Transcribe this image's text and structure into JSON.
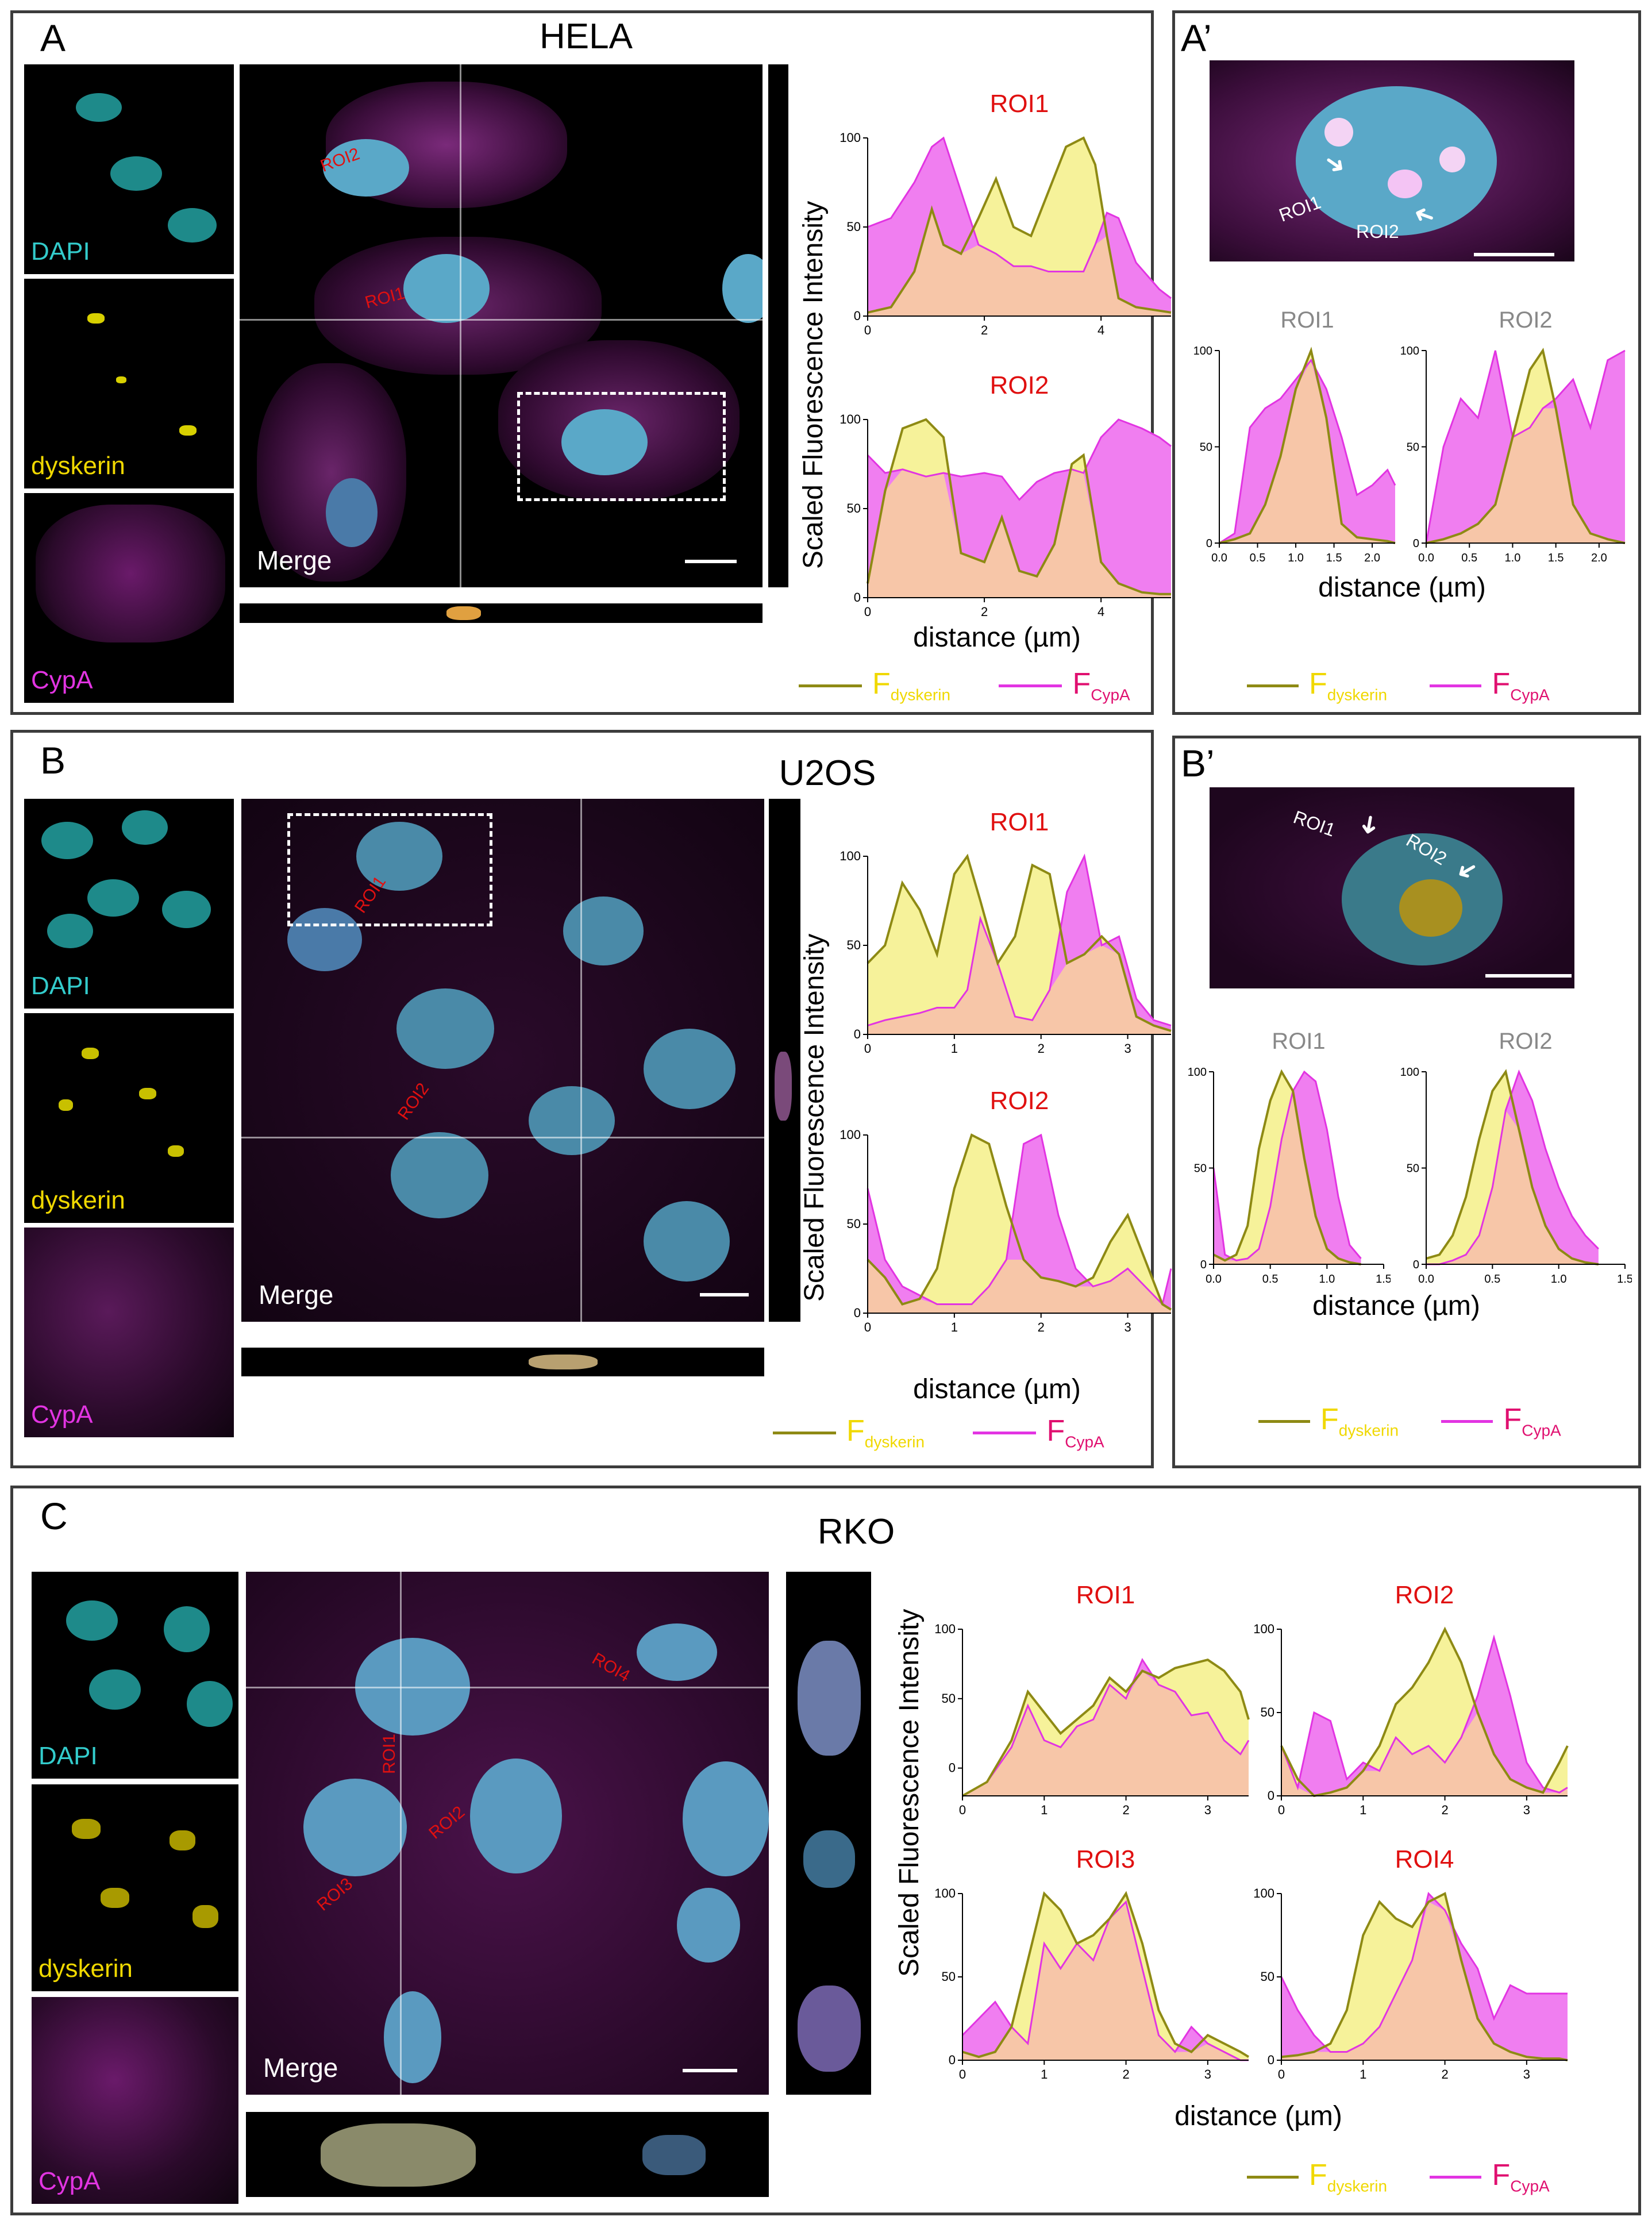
{
  "colors": {
    "dyskerin_line": "#8e8a14",
    "dyskerin_fill": "#f6f29a",
    "dyskerin_text": "#f0d800",
    "cypa": "#e234e2",
    "cypa_fill": "#f07ef0",
    "overlap": "#f7c6a8",
    "roi_red": "#e01010",
    "dapi": "#33cccc",
    "nucleus": "#5aa8c8"
  },
  "panelA": {
    "letter": "A",
    "cell_line": "HELA",
    "channels": [
      "DAPI",
      "dyskerin",
      "CypA"
    ],
    "merge_label": "Merge",
    "roi_labels": [
      "ROI1",
      "ROI2"
    ]
  },
  "panelAp": {
    "letter": "A’",
    "roi_labels": [
      "ROI1",
      "ROI2"
    ]
  },
  "panelB": {
    "letter": "B",
    "cell_line": "U2OS",
    "channels": [
      "DAPI",
      "dyskerin",
      "CypA"
    ],
    "merge_label": "Merge",
    "roi_labels": [
      "ROI1",
      "ROI2"
    ]
  },
  "panelBp": {
    "letter": "B’",
    "roi_labels": [
      "ROI1",
      "ROI2"
    ]
  },
  "panelC": {
    "letter": "C",
    "cell_line": "RKO",
    "channels": [
      "DAPI",
      "dyskerin",
      "CypA"
    ],
    "merge_label": "Merge",
    "roi_labels": [
      "ROI1",
      "ROI2",
      "ROI3",
      "ROI4"
    ]
  },
  "axis": {
    "ylabel": "Scaled Fluorescence Intensity",
    "xlabel": "distance (µm)"
  },
  "legend": {
    "dys_main": "F",
    "dys_sub": "dyskerin",
    "cypa_main": "F",
    "cypa_sub": "CypA"
  },
  "chart_data": [
    {
      "id": "A_ROI1",
      "type": "area",
      "title": "ROI1",
      "xlim": [
        0,
        5.2
      ],
      "ylim": [
        0,
        100
      ],
      "xticks": [
        0,
        2,
        4
      ],
      "yticks": [
        0,
        50,
        100
      ],
      "x": [
        0,
        0.4,
        0.8,
        1.1,
        1.3,
        1.6,
        1.9,
        2.2,
        2.5,
        2.8,
        3.1,
        3.4,
        3.7,
        3.9,
        4.1,
        4.3,
        4.6,
        5.0,
        5.2
      ],
      "series": [
        {
          "name": "dyskerin",
          "values": [
            2,
            5,
            25,
            60,
            40,
            35,
            55,
            77,
            50,
            45,
            70,
            95,
            100,
            85,
            45,
            10,
            5,
            3,
            2
          ]
        },
        {
          "name": "CypA",
          "values": [
            50,
            55,
            75,
            95,
            100,
            70,
            40,
            35,
            28,
            28,
            25,
            25,
            25,
            40,
            58,
            55,
            30,
            15,
            10
          ]
        }
      ]
    },
    {
      "id": "A_ROI2",
      "type": "area",
      "title": "ROI2",
      "xlim": [
        0,
        5.2
      ],
      "ylim": [
        0,
        100
      ],
      "xticks": [
        0,
        2,
        4
      ],
      "yticks": [
        0,
        50,
        100
      ],
      "x": [
        0,
        0.3,
        0.6,
        1.0,
        1.3,
        1.6,
        2.0,
        2.3,
        2.6,
        2.9,
        3.2,
        3.5,
        3.7,
        4.0,
        4.3,
        4.7,
        5.0,
        5.2
      ],
      "series": [
        {
          "name": "dyskerin",
          "values": [
            8,
            60,
            95,
            100,
            90,
            25,
            20,
            45,
            15,
            12,
            30,
            75,
            80,
            20,
            8,
            3,
            2,
            2
          ]
        },
        {
          "name": "CypA",
          "values": [
            80,
            70,
            72,
            68,
            70,
            68,
            70,
            68,
            55,
            65,
            70,
            72,
            70,
            90,
            100,
            95,
            90,
            85
          ]
        }
      ]
    },
    {
      "id": "Ap_ROI1",
      "type": "area",
      "title": "ROI1",
      "xlim": [
        0,
        2.3
      ],
      "ylim": [
        0,
        100
      ],
      "xticks": [
        0.0,
        0.5,
        1.0,
        1.5,
        2.0
      ],
      "yticks": [
        0,
        50,
        100
      ],
      "x": [
        0,
        0.2,
        0.4,
        0.6,
        0.8,
        1.0,
        1.2,
        1.4,
        1.6,
        1.8,
        2.0,
        2.2,
        2.3
      ],
      "series": [
        {
          "name": "dyskerin",
          "values": [
            0,
            2,
            5,
            20,
            45,
            80,
            100,
            65,
            10,
            3,
            2,
            1,
            0
          ]
        },
        {
          "name": "CypA",
          "values": [
            0,
            5,
            60,
            70,
            75,
            85,
            95,
            80,
            55,
            25,
            30,
            38,
            30
          ]
        }
      ]
    },
    {
      "id": "Ap_ROI2",
      "type": "area",
      "title": "ROI2",
      "xlim": [
        0,
        2.3
      ],
      "ylim": [
        0,
        100
      ],
      "xticks": [
        0.0,
        0.5,
        1.0,
        1.5,
        2.0
      ],
      "yticks": [
        0,
        50,
        100
      ],
      "x": [
        0,
        0.2,
        0.4,
        0.6,
        0.8,
        1.0,
        1.2,
        1.35,
        1.5,
        1.7,
        1.9,
        2.1,
        2.3
      ],
      "series": [
        {
          "name": "dyskerin",
          "values": [
            0,
            2,
            5,
            10,
            20,
            55,
            90,
            100,
            70,
            20,
            5,
            2,
            0
          ]
        },
        {
          "name": "CypA",
          "values": [
            0,
            50,
            75,
            65,
            100,
            55,
            60,
            70,
            75,
            85,
            60,
            95,
            100
          ]
        }
      ]
    },
    {
      "id": "B_ROI1",
      "type": "area",
      "title": "ROI1",
      "xlim": [
        0,
        3.5
      ],
      "ylim": [
        0,
        100
      ],
      "xticks": [
        0,
        1,
        2,
        3
      ],
      "yticks": [
        0,
        50,
        100
      ],
      "x": [
        0,
        0.2,
        0.4,
        0.6,
        0.8,
        1.0,
        1.15,
        1.3,
        1.5,
        1.7,
        1.9,
        2.1,
        2.3,
        2.5,
        2.7,
        2.9,
        3.1,
        3.3,
        3.5
      ],
      "series": [
        {
          "name": "dyskerin",
          "values": [
            40,
            50,
            85,
            70,
            45,
            90,
            100,
            75,
            40,
            55,
            95,
            90,
            40,
            45,
            55,
            45,
            10,
            5,
            2
          ]
        },
        {
          "name": "CypA",
          "values": [
            5,
            8,
            10,
            12,
            15,
            15,
            25,
            65,
            40,
            10,
            8,
            25,
            80,
            100,
            50,
            55,
            20,
            8,
            5
          ]
        }
      ]
    },
    {
      "id": "B_ROI2",
      "type": "area",
      "title": "ROI2",
      "xlim": [
        0,
        3.5
      ],
      "ylim": [
        0,
        100
      ],
      "xticks": [
        0,
        1,
        2,
        3
      ],
      "yticks": [
        0,
        50,
        100
      ],
      "x": [
        0,
        0.2,
        0.4,
        0.6,
        0.8,
        1.0,
        1.2,
        1.4,
        1.6,
        1.8,
        2.0,
        2.2,
        2.4,
        2.6,
        2.8,
        3.0,
        3.2,
        3.4,
        3.5
      ],
      "series": [
        {
          "name": "dyskerin",
          "values": [
            30,
            20,
            5,
            8,
            25,
            70,
            100,
            95,
            60,
            30,
            20,
            18,
            15,
            20,
            40,
            55,
            30,
            5,
            2
          ]
        },
        {
          "name": "CypA",
          "values": [
            70,
            30,
            15,
            10,
            5,
            5,
            5,
            15,
            30,
            95,
            100,
            55,
            25,
            15,
            18,
            25,
            15,
            5,
            25
          ]
        }
      ]
    },
    {
      "id": "Bp_ROI1",
      "type": "area",
      "title": "ROI1",
      "xlim": [
        0,
        1.5
      ],
      "ylim": [
        0,
        100
      ],
      "xticks": [
        0.0,
        0.5,
        1.0,
        1.5
      ],
      "yticks": [
        0,
        50,
        100
      ],
      "x": [
        0,
        0.1,
        0.2,
        0.3,
        0.4,
        0.5,
        0.6,
        0.7,
        0.8,
        0.9,
        1.0,
        1.1,
        1.2,
        1.3
      ],
      "series": [
        {
          "name": "dyskerin",
          "values": [
            5,
            2,
            5,
            20,
            60,
            85,
            100,
            90,
            55,
            25,
            8,
            3,
            1,
            0
          ]
        },
        {
          "name": "CypA",
          "values": [
            50,
            5,
            2,
            3,
            8,
            30,
            65,
            90,
            100,
            95,
            70,
            35,
            10,
            3
          ]
        }
      ]
    },
    {
      "id": "Bp_ROI2",
      "type": "area",
      "title": "ROI2",
      "xlim": [
        0,
        1.5
      ],
      "ylim": [
        0,
        100
      ],
      "xticks": [
        0.0,
        0.5,
        1.0,
        1.5
      ],
      "yticks": [
        0,
        50,
        100
      ],
      "x": [
        0,
        0.1,
        0.2,
        0.3,
        0.4,
        0.5,
        0.6,
        0.7,
        0.8,
        0.9,
        1.0,
        1.1,
        1.2,
        1.3
      ],
      "series": [
        {
          "name": "dyskerin",
          "values": [
            3,
            5,
            15,
            35,
            65,
            90,
            100,
            70,
            40,
            20,
            8,
            3,
            1,
            0
          ]
        },
        {
          "name": "CypA",
          "values": [
            0,
            0,
            2,
            5,
            15,
            40,
            80,
            100,
            85,
            60,
            40,
            25,
            15,
            8
          ]
        }
      ]
    },
    {
      "id": "C_ROI1",
      "type": "area",
      "title": "ROI1",
      "xlim": [
        0,
        3.5
      ],
      "ylim": [
        -20,
        100
      ],
      "xticks": [
        0,
        1,
        2,
        3
      ],
      "yticks": [
        0,
        50,
        100
      ],
      "x": [
        0,
        0.3,
        0.6,
        0.8,
        1.0,
        1.2,
        1.4,
        1.6,
        1.8,
        2.0,
        2.2,
        2.4,
        2.6,
        2.8,
        3.0,
        3.2,
        3.4,
        3.5
      ],
      "series": [
        {
          "name": "dyskerin",
          "values": [
            -20,
            -10,
            20,
            55,
            40,
            25,
            35,
            45,
            65,
            55,
            70,
            65,
            72,
            75,
            78,
            70,
            55,
            35
          ]
        },
        {
          "name": "CypA",
          "values": [
            -20,
            -10,
            15,
            45,
            20,
            15,
            30,
            35,
            60,
            50,
            78,
            60,
            55,
            38,
            40,
            20,
            10,
            20
          ]
        }
      ]
    },
    {
      "id": "C_ROI2",
      "type": "area",
      "title": "ROI2",
      "xlim": [
        0,
        3.5
      ],
      "ylim": [
        0,
        100
      ],
      "xticks": [
        0,
        1,
        2,
        3
      ],
      "yticks": [
        0,
        50,
        100
      ],
      "x": [
        0,
        0.2,
        0.4,
        0.6,
        0.8,
        1.0,
        1.2,
        1.4,
        1.6,
        1.8,
        2.0,
        2.2,
        2.4,
        2.6,
        2.8,
        3.0,
        3.2,
        3.4,
        3.5
      ],
      "series": [
        {
          "name": "dyskerin",
          "values": [
            30,
            10,
            0,
            2,
            5,
            15,
            30,
            55,
            65,
            80,
            100,
            80,
            50,
            25,
            10,
            5,
            2,
            20,
            30
          ]
        },
        {
          "name": "CypA",
          "values": [
            30,
            5,
            50,
            45,
            10,
            20,
            15,
            35,
            25,
            30,
            20,
            35,
            60,
            95,
            60,
            20,
            5,
            2,
            5
          ]
        }
      ]
    },
    {
      "id": "C_ROI3",
      "type": "area",
      "title": "ROI3",
      "xlim": [
        0,
        3.5
      ],
      "ylim": [
        0,
        100
      ],
      "xticks": [
        0,
        1,
        2,
        3
      ],
      "yticks": [
        0,
        50,
        100
      ],
      "x": [
        0,
        0.2,
        0.4,
        0.6,
        0.8,
        1.0,
        1.2,
        1.4,
        1.6,
        1.8,
        2.0,
        2.2,
        2.4,
        2.6,
        2.8,
        3.0,
        3.2,
        3.4,
        3.5
      ],
      "series": [
        {
          "name": "dyskerin",
          "values": [
            5,
            2,
            5,
            20,
            60,
            100,
            90,
            70,
            75,
            85,
            100,
            70,
            30,
            10,
            5,
            15,
            10,
            5,
            2
          ]
        },
        {
          "name": "CypA",
          "values": [
            15,
            25,
            35,
            20,
            10,
            70,
            55,
            70,
            60,
            85,
            95,
            55,
            15,
            5,
            20,
            10,
            5,
            0,
            0
          ]
        }
      ]
    },
    {
      "id": "C_ROI4",
      "type": "area",
      "title": "ROI4",
      "xlim": [
        0,
        3.5
      ],
      "ylim": [
        0,
        100
      ],
      "xticks": [
        0,
        1,
        2,
        3
      ],
      "yticks": [
        0,
        50,
        100
      ],
      "x": [
        0,
        0.2,
        0.4,
        0.6,
        0.8,
        1.0,
        1.2,
        1.4,
        1.6,
        1.8,
        2.0,
        2.2,
        2.4,
        2.6,
        2.8,
        3.0,
        3.2,
        3.4,
        3.5
      ],
      "series": [
        {
          "name": "dyskerin",
          "values": [
            2,
            3,
            5,
            10,
            30,
            75,
            95,
            85,
            80,
            95,
            100,
            60,
            25,
            10,
            5,
            2,
            1,
            1,
            0
          ]
        },
        {
          "name": "CypA",
          "values": [
            50,
            30,
            15,
            5,
            5,
            10,
            20,
            40,
            60,
            100,
            90,
            70,
            55,
            25,
            45,
            40,
            40,
            40,
            40
          ]
        }
      ]
    }
  ]
}
